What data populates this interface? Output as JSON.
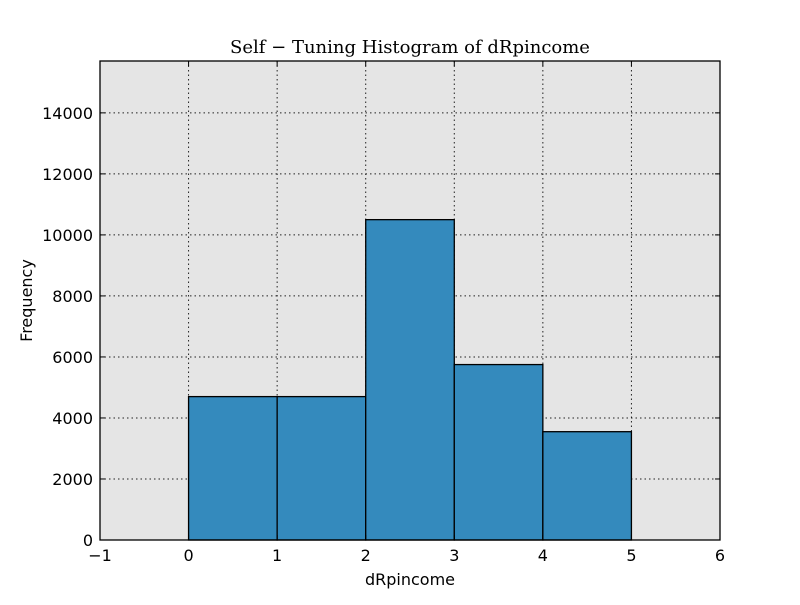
{
  "chart_data": {
    "type": "bar",
    "title": "Self − Tuning Histogram of dRpincome",
    "xlabel": "dRpincome",
    "ylabel": "Frequency",
    "xlim": [
      -1,
      6
    ],
    "ylim": [
      0,
      15700
    ],
    "xticks": [
      -1,
      0,
      1,
      2,
      3,
      4,
      5,
      6
    ],
    "xtick_labels": [
      "−1",
      "0",
      "1",
      "2",
      "3",
      "4",
      "5",
      "6"
    ],
    "yticks": [
      0,
      2000,
      4000,
      6000,
      8000,
      10000,
      12000,
      14000
    ],
    "ytick_labels": [
      "0",
      "2000",
      "4000",
      "6000",
      "8000",
      "10000",
      "12000",
      "14000"
    ],
    "bins": [
      {
        "x0": 0,
        "x1": 1,
        "value": 4700
      },
      {
        "x0": 1,
        "x1": 2,
        "value": 4700
      },
      {
        "x0": 2,
        "x1": 3,
        "value": 10500
      },
      {
        "x0": 3,
        "x1": 4,
        "value": 5750
      },
      {
        "x0": 4,
        "x1": 5,
        "value": 3550
      }
    ],
    "grid": true,
    "colors": {
      "bar": "#348ABD",
      "background": "#E5E5E5"
    }
  }
}
